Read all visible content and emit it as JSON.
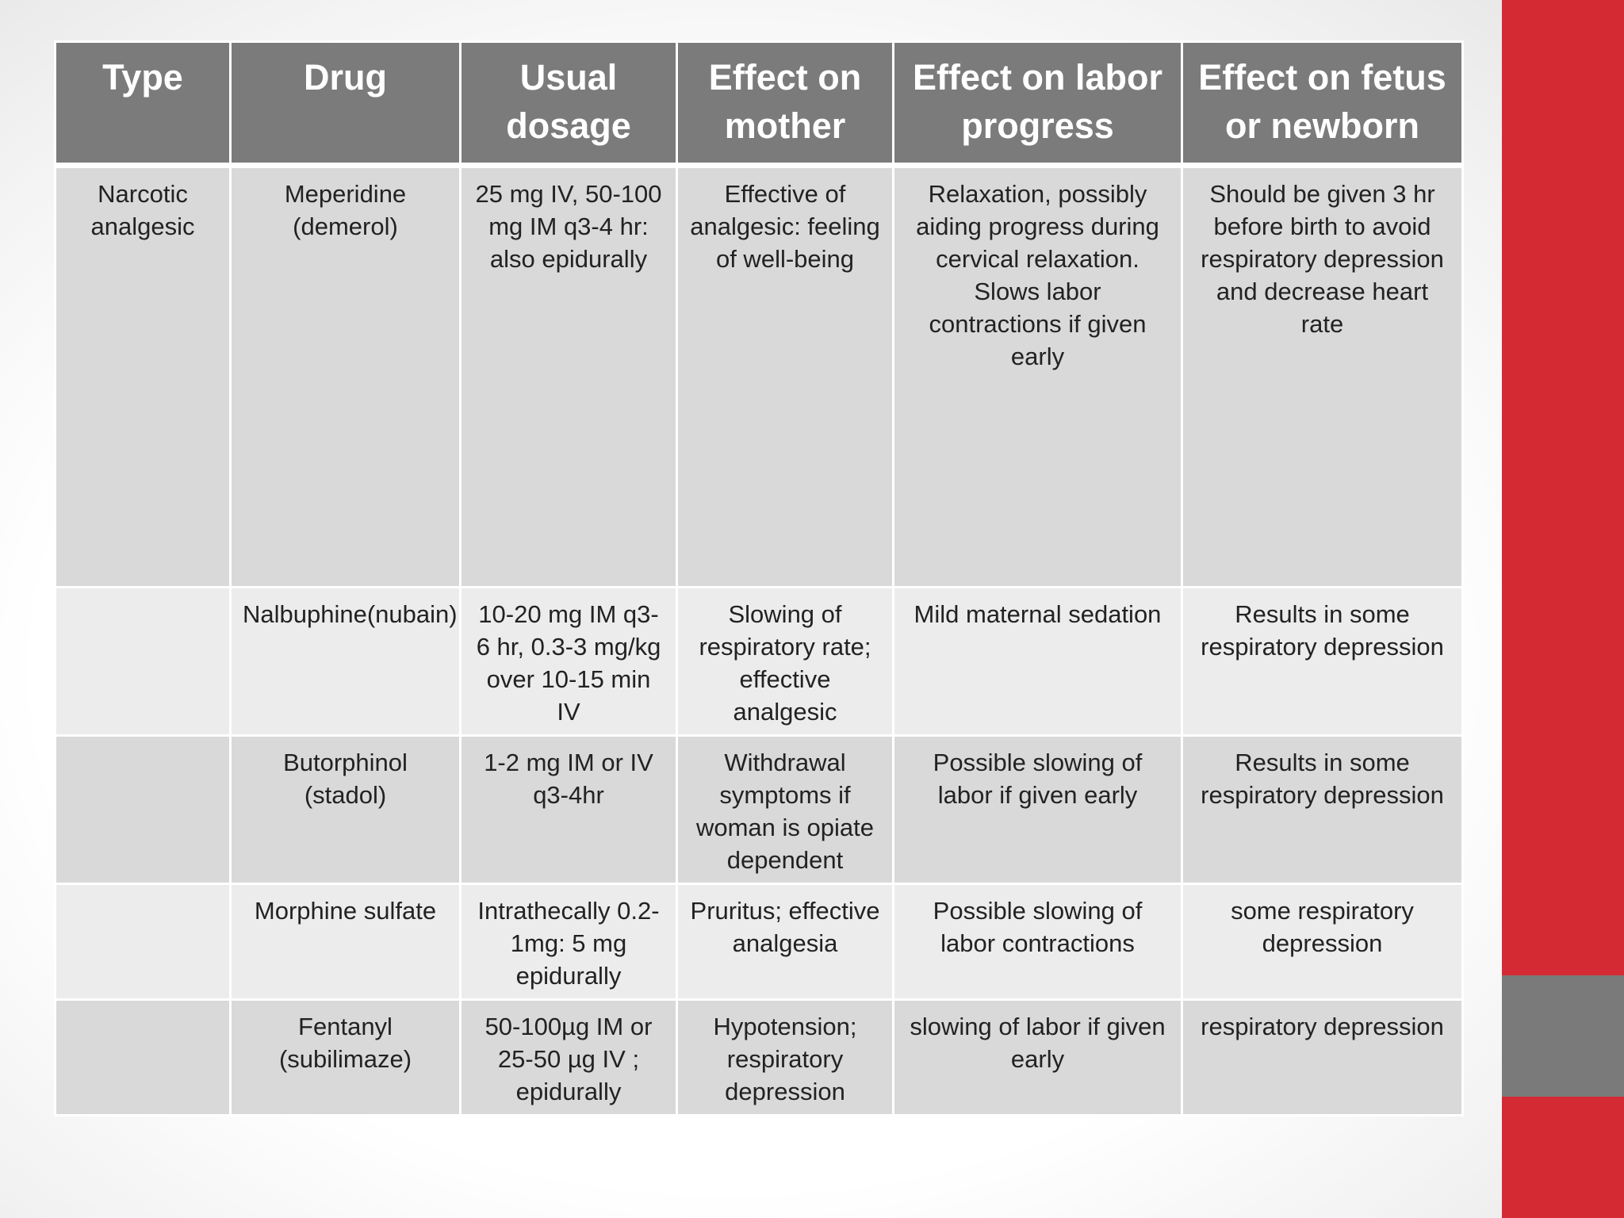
{
  "table": {
    "headers": [
      "Type",
      "Drug",
      "Usual dosage",
      "Effect on mother",
      "Effect on labor progress",
      "Effect on fetus or newborn"
    ],
    "rows": [
      {
        "type": "Narcotic analgesic",
        "drug": "Meperidine (demerol)",
        "dosage": "25 mg IV, 50-100 mg IM q3-4 hr: also epidurally",
        "mother": "Effective of analgesic: feeling of well-being",
        "labor": "Relaxation, possibly aiding progress during cervical relaxation. Slows labor contractions if given early",
        "fetus": "Should be given 3 hr before birth to avoid respiratory depression and decrease heart rate"
      },
      {
        "type": "",
        "drug": "Nalbuphine(nubain)",
        "dosage": "10-20 mg IM q3-6 hr, 0.3-3 mg/kg over 10-15 min IV",
        "mother": "Slowing of respiratory rate; effective analgesic",
        "labor": "Mild maternal sedation",
        "fetus": "Results in some respiratory depression"
      },
      {
        "type": "",
        "drug": "Butorphinol (stadol)",
        "dosage": "1-2 mg IM or IV q3-4hr",
        "mother": "Withdrawal symptoms if woman is opiate dependent",
        "labor": "Possible slowing of labor if given  early",
        "fetus": "Results in some respiratory depression"
      },
      {
        "type": "",
        "drug": "Morphine sulfate",
        "dosage": "Intrathecally 0.2-1mg: 5 mg epidurally",
        "mother": "Pruritus; effective analgesia",
        "labor": "Possible slowing of labor contractions",
        "fetus": "some respiratory depression"
      },
      {
        "type": "",
        "drug": "Fentanyl (subilimaze)",
        "dosage": "50-100µg IM or 25-50 µg IV ; epidurally",
        "mother": "Hypotension; respiratory depression",
        "labor": "slowing of labor if given  early",
        "fetus": "respiratory depression"
      }
    ]
  },
  "theme": {
    "header_bg": "#7b7b7b",
    "row_dark": "#d9d9d9",
    "row_light": "#ececec",
    "accent": "#d42a33",
    "accent_band": "#7a7a7a"
  }
}
